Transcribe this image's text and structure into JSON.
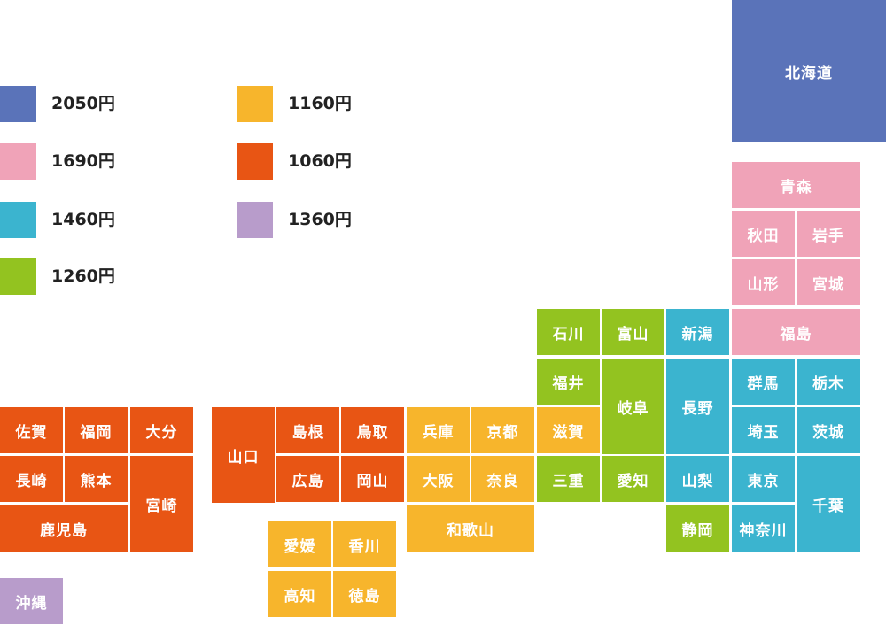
{
  "legend": [
    {
      "label": "2050円",
      "color": "#5a73b9"
    },
    {
      "label": "1690円",
      "color": "#f0a3b8"
    },
    {
      "label": "1460円",
      "color": "#3bb4cf"
    },
    {
      "label": "1260円",
      "color": "#93c320"
    },
    {
      "label": "1160円",
      "color": "#f7b52c"
    },
    {
      "label": "1060円",
      "color": "#e85514"
    },
    {
      "label": "1360円",
      "color": "#b89ccb"
    }
  ],
  "prefectures": [
    {
      "name": "北海道",
      "price": "2050円"
    },
    {
      "name": "青森",
      "price": "1690円"
    },
    {
      "name": "秋田",
      "price": "1690円"
    },
    {
      "name": "岩手",
      "price": "1690円"
    },
    {
      "name": "山形",
      "price": "1690円"
    },
    {
      "name": "宮城",
      "price": "1690円"
    },
    {
      "name": "福島",
      "price": "1690円"
    },
    {
      "name": "石川",
      "price": "1260円"
    },
    {
      "name": "富山",
      "price": "1260円"
    },
    {
      "name": "新潟",
      "price": "1460円"
    },
    {
      "name": "福井",
      "price": "1260円"
    },
    {
      "name": "岐阜",
      "price": "1260円"
    },
    {
      "name": "長野",
      "price": "1460円"
    },
    {
      "name": "群馬",
      "price": "1460円"
    },
    {
      "name": "栃木",
      "price": "1460円"
    },
    {
      "name": "滋賀",
      "price": "1160円"
    },
    {
      "name": "埼玉",
      "price": "1460円"
    },
    {
      "name": "茨城",
      "price": "1460円"
    },
    {
      "name": "三重",
      "price": "1260円"
    },
    {
      "name": "愛知",
      "price": "1260円"
    },
    {
      "name": "山梨",
      "price": "1460円"
    },
    {
      "name": "東京",
      "price": "1460円"
    },
    {
      "name": "千葉",
      "price": "1460円"
    },
    {
      "name": "静岡",
      "price": "1260円"
    },
    {
      "name": "神奈川",
      "price": "1460円"
    },
    {
      "name": "兵庫",
      "price": "1160円"
    },
    {
      "name": "京都",
      "price": "1160円"
    },
    {
      "name": "大阪",
      "price": "1160円"
    },
    {
      "name": "奈良",
      "price": "1160円"
    },
    {
      "name": "和歌山",
      "price": "1160円"
    },
    {
      "name": "山口",
      "price": "1060円"
    },
    {
      "name": "島根",
      "price": "1060円"
    },
    {
      "name": "鳥取",
      "price": "1060円"
    },
    {
      "name": "広島",
      "price": "1060円"
    },
    {
      "name": "岡山",
      "price": "1060円"
    },
    {
      "name": "愛媛",
      "price": "1160円"
    },
    {
      "name": "香川",
      "price": "1160円"
    },
    {
      "name": "高知",
      "price": "1160円"
    },
    {
      "name": "徳島",
      "price": "1160円"
    },
    {
      "name": "佐賀",
      "price": "1060円"
    },
    {
      "name": "福岡",
      "price": "1060円"
    },
    {
      "name": "大分",
      "price": "1060円"
    },
    {
      "name": "長崎",
      "price": "1060円"
    },
    {
      "name": "熊本",
      "price": "1060円"
    },
    {
      "name": "宮崎",
      "price": "1060円"
    },
    {
      "name": "鹿児島",
      "price": "1060円"
    },
    {
      "name": "沖縄",
      "price": "1360円"
    }
  ]
}
